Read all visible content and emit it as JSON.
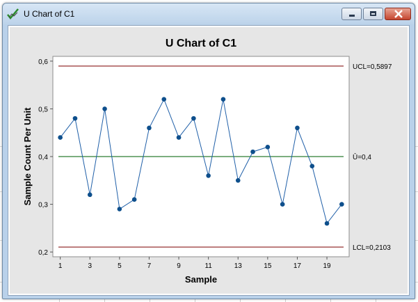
{
  "window": {
    "title": "U Chart of C1"
  },
  "colors": {
    "line": "#1f5fa8",
    "marker": "#0e4f8c",
    "control_limit": "#8b1a1a",
    "center_line": "#2e7d32",
    "chart_bg": "#e6e6e6",
    "plot_bg": "#ffffff"
  },
  "chart_data": {
    "type": "line",
    "title": "U Chart of C1",
    "xlabel": "Sample",
    "ylabel": "Sample Count Per Unit",
    "x": [
      1,
      2,
      3,
      4,
      5,
      6,
      7,
      8,
      9,
      10,
      11,
      12,
      13,
      14,
      15,
      16,
      17,
      18,
      19,
      20
    ],
    "series": [
      {
        "values": [
          0.44,
          0.48,
          0.32,
          0.5,
          0.29,
          0.31,
          0.46,
          0.52,
          0.44,
          0.48,
          0.36,
          0.52,
          0.35,
          0.41,
          0.42,
          0.3,
          0.46,
          0.38,
          0.26,
          0.3
        ]
      }
    ],
    "reference_lines": [
      {
        "label": "UCL=0,5897",
        "value": 0.5897,
        "kind": "control_limit"
      },
      {
        "label": "Ū=0,4",
        "value": 0.4,
        "kind": "center"
      },
      {
        "label": "LCL=0,2103",
        "value": 0.2103,
        "kind": "control_limit"
      }
    ],
    "xticks": [
      1,
      3,
      5,
      7,
      9,
      11,
      13,
      15,
      17,
      19
    ],
    "xtick_labels": [
      "1",
      "3",
      "5",
      "7",
      "9",
      "11",
      "13",
      "15",
      "17",
      "19"
    ],
    "yticks": [
      0.2,
      0.3,
      0.4,
      0.5,
      0.6
    ],
    "ytick_labels": [
      "0,2",
      "0,3",
      "0,4",
      "0,5",
      "0,6"
    ],
    "xlim": [
      0.5,
      20.5
    ],
    "ylim": [
      0.19,
      0.61
    ],
    "grid": false,
    "legend": "none"
  }
}
